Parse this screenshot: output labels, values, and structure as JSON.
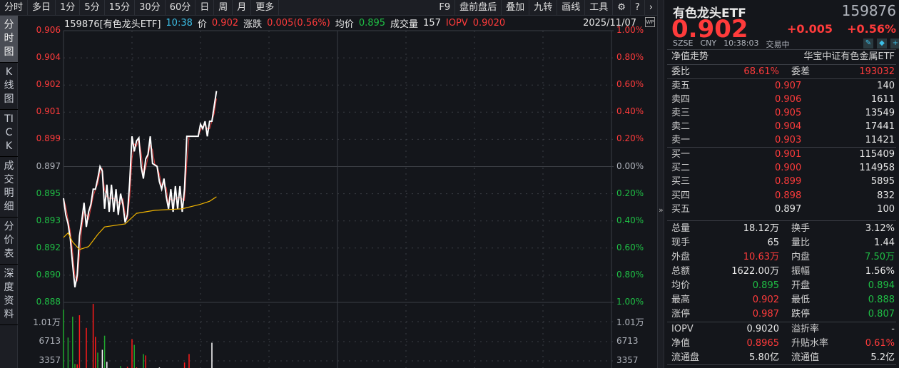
{
  "toolbar": {
    "periods": [
      "分时",
      "多日",
      "1分",
      "5分",
      "15分",
      "30分",
      "60分",
      "日",
      "周",
      "月",
      "更多"
    ],
    "tools": [
      "F9",
      "盘前盘后",
      "叠加",
      "九转",
      "画线",
      "工具"
    ],
    "gear": "gear-icon",
    "help": "help-icon",
    "next": "chevron-right-icon"
  },
  "side_tabs": [
    {
      "label": "分时图",
      "active": true
    },
    {
      "label": "K线图"
    },
    {
      "label": "TICK"
    },
    {
      "label": "成交明细"
    },
    {
      "label": "分价表"
    },
    {
      "label": "深度资料"
    }
  ],
  "info": {
    "code_name": "159876[有色龙头ETF]",
    "time": "10:38",
    "price_label": "价",
    "price": "0.902",
    "chg_label": "涨跌",
    "chg": "0.005(0.56%)",
    "avg_label": "均价",
    "avg": "0.895",
    "vol_label": "成交量",
    "vol": "157",
    "iopv_label": "IOPV",
    "iopv": "0.9020",
    "date": "2025/11/07",
    "wp": "WP"
  },
  "chart_data": {
    "type": "line",
    "price_ticks": [
      "0.906",
      "0.904",
      "0.902",
      "0.901",
      "0.899",
      "0.897",
      "0.895",
      "0.893",
      "0.892",
      "0.890",
      "0.888"
    ],
    "pct_ticks": [
      "1.00%",
      "0.80%",
      "0.60%",
      "0.40%",
      "0.20%",
      "0.00%",
      "0.20%",
      "0.40%",
      "0.60%",
      "0.80%",
      "1.00%"
    ],
    "vol_ticks": [
      "1.01万",
      "6713",
      "3357"
    ],
    "ylim": [
      0.888,
      0.906
    ],
    "prev_close": 0.897,
    "x_minutes_total": 240,
    "vol_max": 10070,
    "price": [
      0.8949,
      0.8938,
      0.8932,
      0.8922,
      0.8905,
      0.889,
      0.8898,
      0.8924,
      0.8934,
      0.8946,
      0.893,
      0.894,
      0.8945,
      0.8955,
      0.8955,
      0.8962,
      0.897,
      0.8967,
      0.8942,
      0.8958,
      0.894,
      0.8958,
      0.894,
      0.8955,
      0.8938,
      0.8952,
      0.8945,
      0.8933,
      0.8938,
      0.896,
      0.899,
      0.898,
      0.8987,
      0.8989,
      0.897,
      0.8962,
      0.8975,
      0.8978,
      0.899,
      0.8972,
      0.8971,
      0.897,
      0.896,
      0.8955,
      0.8962,
      0.895,
      0.8942,
      0.8955,
      0.894,
      0.8957,
      0.8942,
      0.8957,
      0.894,
      0.8955,
      0.899,
      0.899,
      0.899,
      0.899,
      0.899,
      0.899,
      0.8998,
      0.8995,
      0.9,
      0.899,
      0.9,
      0.9,
      0.901,
      0.902
    ],
    "avg_points": [
      [
        0,
        0.8923
      ],
      [
        2,
        0.8926
      ],
      [
        4,
        0.892
      ],
      [
        7,
        0.8915
      ],
      [
        11,
        0.8917
      ],
      [
        15,
        0.8925
      ],
      [
        18,
        0.893
      ],
      [
        27,
        0.8932
      ],
      [
        32,
        0.8939
      ],
      [
        40,
        0.8941
      ],
      [
        52,
        0.8942
      ],
      [
        60,
        0.8945
      ],
      [
        64,
        0.8947
      ],
      [
        67,
        0.895
      ]
    ],
    "volume": [
      [
        0,
        12110,
        "down"
      ],
      [
        2,
        7360,
        "down"
      ],
      [
        4,
        10920,
        "down"
      ],
      [
        5,
        2880,
        "down"
      ],
      [
        6,
        2800,
        "up"
      ],
      [
        7,
        11160,
        "up"
      ],
      [
        10,
        9000,
        "up"
      ],
      [
        13,
        13100,
        "up"
      ],
      [
        14,
        7480,
        "up"
      ],
      [
        15,
        4800,
        "down"
      ],
      [
        17,
        5280,
        "flat"
      ],
      [
        18,
        7680,
        "down"
      ],
      [
        19,
        3240,
        "flat"
      ],
      [
        25,
        2520,
        "down"
      ],
      [
        28,
        2400,
        "up"
      ],
      [
        30,
        7080,
        "up"
      ],
      [
        31,
        6120,
        "down"
      ],
      [
        32,
        2280,
        "up"
      ],
      [
        35,
        4560,
        "down"
      ],
      [
        36,
        4320,
        "up"
      ],
      [
        42,
        2280,
        "flat"
      ],
      [
        53,
        3120,
        "up"
      ],
      [
        55,
        4560,
        "up"
      ],
      [
        65,
        6480,
        "flat"
      ]
    ],
    "colors": {
      "price": "#ffffff",
      "avg": "#f0b400",
      "up": "#ff1a1a",
      "down": "#1fa82e",
      "flat": "#ffffff"
    }
  },
  "quote": {
    "name": "有色龙头ETF",
    "code": "159876",
    "price": "0.902",
    "chg": "+0.005",
    "pct": "+0.56%",
    "exchange": "SZSE",
    "currency": "CNY",
    "time": "10:38:03",
    "status": "交易中",
    "nav_trend": "净值走势",
    "fund_name": "华宝中证有色金属ETF",
    "wb_label": "委比",
    "wb": "68.61%",
    "wc_label": "委差",
    "wc": "193032"
  },
  "asks": [
    {
      "label": "卖五",
      "price": "0.907",
      "vol": "140"
    },
    {
      "label": "卖四",
      "price": "0.906",
      "vol": "1611"
    },
    {
      "label": "卖三",
      "price": "0.905",
      "vol": "13549"
    },
    {
      "label": "卖二",
      "price": "0.904",
      "vol": "17441"
    },
    {
      "label": "卖一",
      "price": "0.903",
      "vol": "11421"
    }
  ],
  "bids": [
    {
      "label": "买一",
      "price": "0.901",
      "vol": "115409"
    },
    {
      "label": "买二",
      "price": "0.900",
      "vol": "114958"
    },
    {
      "label": "买三",
      "price": "0.899",
      "vol": "5895"
    },
    {
      "label": "买四",
      "price": "0.898",
      "vol": "832"
    },
    {
      "label": "买五",
      "price": "0.897",
      "vol": "100"
    }
  ],
  "stats": [
    {
      "l1": "总量",
      "v1": "18.12万",
      "c1": "white",
      "l2": "换手",
      "v2": "3.12%",
      "c2": "white"
    },
    {
      "l1": "现手",
      "v1": "65",
      "c1": "white",
      "l2": "量比",
      "v2": "1.44",
      "c2": "white"
    },
    {
      "l1": "外盘",
      "v1": "10.63万",
      "c1": "red",
      "l2": "内盘",
      "v2": "7.50万",
      "c2": "green"
    },
    {
      "l1": "总额",
      "v1": "1622.00万",
      "c1": "white",
      "l2": "振幅",
      "v2": "1.56%",
      "c2": "white"
    },
    {
      "l1": "均价",
      "v1": "0.895",
      "c1": "green",
      "l2": "开盘",
      "v2": "0.894",
      "c2": "green"
    },
    {
      "l1": "最高",
      "v1": "0.902",
      "c1": "red",
      "l2": "最低",
      "v2": "0.888",
      "c2": "green"
    },
    {
      "l1": "涨停",
      "v1": "0.987",
      "c1": "red",
      "l2": "跌停",
      "v2": "0.807",
      "c2": "green"
    }
  ],
  "extra": [
    {
      "l1": "IOPV",
      "v1": "0.9020",
      "c1": "white",
      "l2": "溢折率",
      "v2": "-",
      "c2": "white"
    },
    {
      "l1": "净值",
      "v1": "0.8965",
      "c1": "red",
      "l2": "升贴水率",
      "v2": "0.61%",
      "c2": "red"
    },
    {
      "l1": "流通盘",
      "v1": "5.80亿",
      "c1": "white",
      "l2": "流通值",
      "v2": "5.2亿",
      "c2": "white"
    }
  ]
}
